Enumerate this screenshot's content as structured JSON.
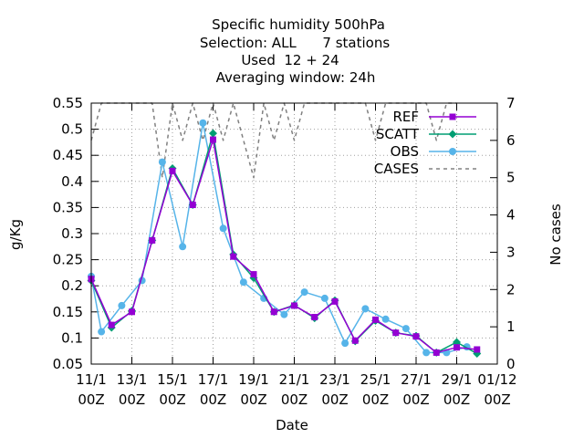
{
  "chart_data": {
    "type": "line",
    "title_lines": [
      "Specific humidity 500hPa",
      "Selection: ALL      7 stations",
      "Used  12 + 24",
      "Averaging window: 24h"
    ],
    "xlabel": "Date",
    "ylabel": "g/Kg",
    "y2label": "No cases",
    "ylim": [
      0.05,
      0.55
    ],
    "y2lim": [
      0,
      7
    ],
    "grid": true,
    "legend_position": "top-right",
    "xlim": [
      "2011-11-11 00Z",
      "2011-12-01 00Z"
    ],
    "x_ticks": [
      {
        "line1": "11/1",
        "line2": "00Z"
      },
      {
        "line1": "13/1",
        "line2": "00Z"
      },
      {
        "line1": "15/1",
        "line2": "00Z"
      },
      {
        "line1": "17/1",
        "line2": "00Z"
      },
      {
        "line1": "19/1",
        "line2": "00Z"
      },
      {
        "line1": "21/1",
        "line2": "00Z"
      },
      {
        "line1": "23/1",
        "line2": "00Z"
      },
      {
        "line1": "25/1",
        "line2": "00Z"
      },
      {
        "line1": "27/1",
        "line2": "00Z"
      },
      {
        "line1": "29/1",
        "line2": "00Z"
      },
      {
        "line1": "01/12",
        "line2": "00Z"
      }
    ],
    "y_ticks": [
      "0.05",
      "0.1",
      "0.15",
      "0.2",
      "0.25",
      "0.3",
      "0.35",
      "0.4",
      "0.45",
      "0.5",
      "0.55"
    ],
    "y2_ticks": [
      "0",
      "1",
      "2",
      "3",
      "4",
      "5",
      "6",
      "7"
    ],
    "x": [
      "11/11 00Z",
      "11/11 12Z",
      "12/11 00Z",
      "12/11 12Z",
      "13/11 00Z",
      "13/11 12Z",
      "14/11 00Z",
      "14/11 12Z",
      "15/11 00Z",
      "15/11 12Z",
      "16/11 00Z",
      "16/11 12Z",
      "17/11 00Z",
      "17/11 12Z",
      "18/11 00Z",
      "18/11 12Z",
      "19/11 00Z",
      "19/11 12Z",
      "20/11 00Z",
      "20/11 12Z",
      "21/11 00Z",
      "21/11 12Z",
      "22/11 00Z",
      "22/11 12Z",
      "23/11 00Z",
      "23/11 12Z",
      "24/11 00Z",
      "24/11 12Z",
      "25/11 00Z",
      "25/11 12Z",
      "26/11 00Z",
      "26/11 12Z",
      "27/11 00Z",
      "27/11 12Z",
      "28/11 00Z",
      "28/11 12Z",
      "29/11 00Z",
      "29/11 12Z",
      "30/11 00Z",
      "30/11 12Z",
      "01/12 00Z"
    ],
    "series": [
      {
        "name": "REF",
        "color": "#9400d3",
        "marker": "square",
        "points": [
          [
            "11/11 00Z",
            0.213
          ],
          [
            "12/11 00Z",
            0.125
          ],
          [
            "13/11 00Z",
            0.15
          ],
          [
            "14/11 00Z",
            0.287
          ],
          [
            "15/11 00Z",
            0.42
          ],
          [
            "16/11 00Z",
            0.355
          ],
          [
            "17/11 00Z",
            0.48
          ],
          [
            "18/11 00Z",
            0.256
          ],
          [
            "19/11 00Z",
            0.222
          ],
          [
            "20/11 00Z",
            0.15
          ],
          [
            "21/11 00Z",
            0.162
          ],
          [
            "22/11 00Z",
            0.14
          ],
          [
            "23/11 00Z",
            0.17
          ],
          [
            "24/11 00Z",
            0.095
          ],
          [
            "25/11 00Z",
            0.135
          ],
          [
            "26/11 00Z",
            0.11
          ],
          [
            "27/11 00Z",
            0.103
          ],
          [
            "28/11 00Z",
            0.072
          ],
          [
            "29/11 00Z",
            0.082
          ],
          [
            "30/11 00Z",
            0.078
          ]
        ]
      },
      {
        "name": "SCATT",
        "color": "#009e73",
        "marker": "diamond",
        "points": [
          [
            "11/11 00Z",
            0.21
          ],
          [
            "12/11 00Z",
            0.12
          ],
          [
            "13/11 00Z",
            0.152
          ],
          [
            "14/11 00Z",
            0.287
          ],
          [
            "15/11 00Z",
            0.425
          ],
          [
            "16/11 00Z",
            0.355
          ],
          [
            "17/11 00Z",
            0.492
          ],
          [
            "18/11 00Z",
            0.26
          ],
          [
            "19/11 00Z",
            0.215
          ],
          [
            "20/11 00Z",
            0.15
          ],
          [
            "21/11 00Z",
            0.163
          ],
          [
            "22/11 00Z",
            0.138
          ],
          [
            "23/11 00Z",
            0.172
          ],
          [
            "24/11 00Z",
            0.094
          ],
          [
            "25/11 00Z",
            0.133
          ],
          [
            "26/11 00Z",
            0.11
          ],
          [
            "27/11 00Z",
            0.104
          ],
          [
            "28/11 00Z",
            0.072
          ],
          [
            "29/11 00Z",
            0.092
          ],
          [
            "30/11 00Z",
            0.07
          ]
        ]
      },
      {
        "name": "OBS",
        "color": "#56b4e9",
        "marker": "circle",
        "points": [
          [
            "11/11 00Z",
            0.218
          ],
          [
            "11/11 12Z",
            0.112
          ],
          [
            "12/11 12Z",
            0.162
          ],
          [
            "13/11 12Z",
            0.21
          ],
          [
            "14/11 12Z",
            0.437
          ],
          [
            "15/11 12Z",
            0.275
          ],
          [
            "16/11 12Z",
            0.512
          ],
          [
            "17/11 12Z",
            0.31
          ],
          [
            "18/11 12Z",
            0.207
          ],
          [
            "19/11 12Z",
            0.176
          ],
          [
            "20/11 12Z",
            0.145
          ],
          [
            "21/11 12Z",
            0.188
          ],
          [
            "22/11 12Z",
            0.176
          ],
          [
            "23/11 12Z",
            0.09
          ],
          [
            "24/11 12Z",
            0.156
          ],
          [
            "25/11 12Z",
            0.136
          ],
          [
            "26/11 12Z",
            0.118
          ],
          [
            "27/11 12Z",
            0.072
          ],
          [
            "28/11 12Z",
            0.072
          ],
          [
            "29/11 12Z",
            0.083
          ]
        ]
      },
      {
        "name": "CASES",
        "color": "#808080",
        "dashed": true,
        "axis": "y2",
        "points": [
          [
            "11/11 00Z",
            6
          ],
          [
            "11/11 12Z",
            7
          ],
          [
            "12/11 00Z",
            7
          ],
          [
            "12/11 12Z",
            7
          ],
          [
            "13/11 00Z",
            7
          ],
          [
            "13/11 12Z",
            7
          ],
          [
            "14/11 00Z",
            7
          ],
          [
            "14/11 12Z",
            5
          ],
          [
            "15/11 00Z",
            7
          ],
          [
            "15/11 12Z",
            6
          ],
          [
            "16/11 00Z",
            7
          ],
          [
            "16/11 12Z",
            6
          ],
          [
            "17/11 00Z",
            7
          ],
          [
            "17/11 12Z",
            6
          ],
          [
            "18/11 00Z",
            7
          ],
          [
            "18/11 12Z",
            6
          ],
          [
            "19/11 00Z",
            5
          ],
          [
            "19/11 12Z",
            7
          ],
          [
            "20/11 00Z",
            6
          ],
          [
            "20/11 12Z",
            7
          ],
          [
            "21/11 00Z",
            6
          ],
          [
            "21/11 12Z",
            7
          ],
          [
            "22/11 00Z",
            7
          ],
          [
            "22/11 12Z",
            7
          ],
          [
            "23/11 00Z",
            7
          ],
          [
            "23/11 12Z",
            7
          ],
          [
            "24/11 00Z",
            7
          ],
          [
            "24/11 12Z",
            7
          ],
          [
            "25/11 00Z",
            6
          ],
          [
            "25/11 12Z",
            7
          ],
          [
            "26/11 00Z",
            7
          ],
          [
            "26/11 12Z",
            7
          ],
          [
            "27/11 00Z",
            7
          ],
          [
            "27/11 12Z",
            7
          ],
          [
            "28/11 00Z",
            6
          ],
          [
            "28/11 12Z",
            7
          ],
          [
            "29/11 00Z",
            7
          ]
        ]
      }
    ]
  }
}
